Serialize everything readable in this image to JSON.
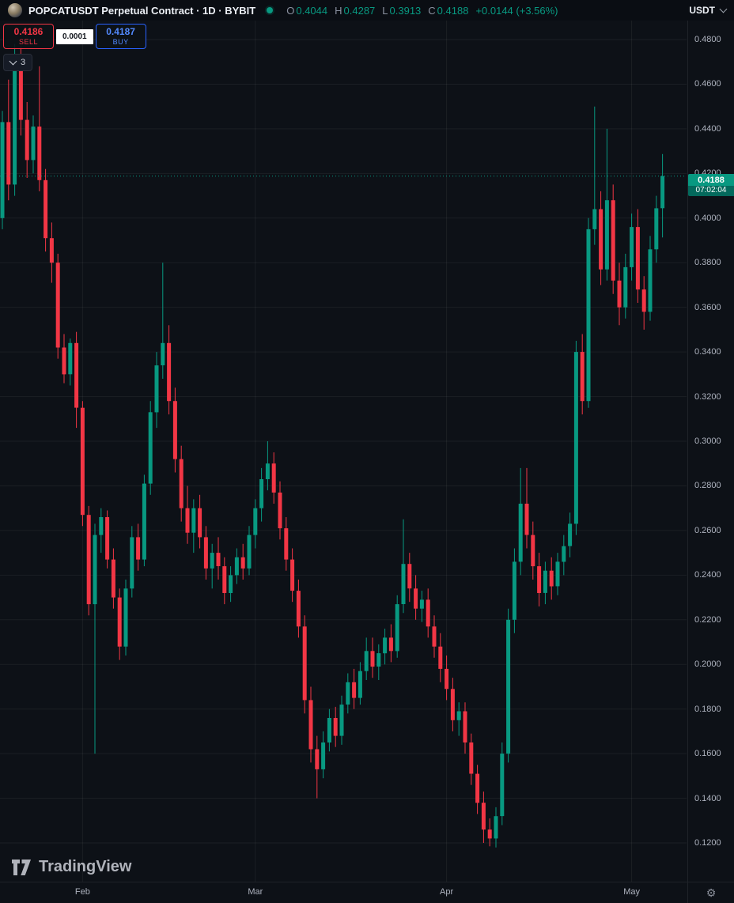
{
  "header": {
    "symbol_title": "POPCATUSDT Perpetual Contract · 1D · BYBIT",
    "ohlc": {
      "o_label": "O",
      "o": "0.4044",
      "h_label": "H",
      "h": "0.4287",
      "l_label": "L",
      "l": "0.3913",
      "c_label": "C",
      "c": "0.4188",
      "change": "+0.0144 (+3.56%)"
    },
    "currency": "USDT"
  },
  "trade_panel": {
    "sell_price": "0.4186",
    "sell_label": "SELL",
    "spread": "0.0001",
    "buy_price": "0.4187",
    "buy_label": "BUY",
    "collapsed_count": "3"
  },
  "price_label": {
    "price": "0.4188",
    "countdown": "07:02:04"
  },
  "watermark": "TradingView",
  "icons": {
    "gear": "⚙"
  },
  "colors": {
    "up": "#089981",
    "down": "#f23645",
    "buy_blue": "#2962ff",
    "background": "#0d1117",
    "grid": "rgba(255,255,255,0.06)",
    "price_label_bg": "#089981"
  },
  "chart_data": {
    "type": "candlestick",
    "title": "POPCATUSDT Perpetual Contract",
    "exchange": "BYBIT",
    "interval": "1D",
    "last_price": 0.4188,
    "last_change": "+0.0144 (+3.56%)",
    "price_axis": {
      "view_max": 0.4885,
      "view_min": 0.1023,
      "tick_step": 0.02,
      "decimals": 4,
      "ticks": [
        "0.4800",
        "0.4600",
        "0.4400",
        "0.4200",
        "0.4000",
        "0.3800",
        "0.3600",
        "0.3400",
        "0.3200",
        "0.3000",
        "0.2800",
        "0.2600",
        "0.2400",
        "0.2200",
        "0.2000",
        "0.1800",
        "0.1600",
        "0.1400",
        "0.1200"
      ]
    },
    "time_axis": {
      "labels": [
        "Feb",
        "Mar",
        "Apr",
        "May"
      ],
      "tick_indices": [
        13,
        41,
        72,
        102
      ]
    },
    "candles": [
      [
        0.4,
        0.448,
        0.395,
        0.443
      ],
      [
        0.443,
        0.462,
        0.408,
        0.415
      ],
      [
        0.415,
        0.478,
        0.41,
        0.47
      ],
      [
        0.47,
        0.477,
        0.437,
        0.444
      ],
      [
        0.444,
        0.452,
        0.418,
        0.426
      ],
      [
        0.426,
        0.446,
        0.42,
        0.441
      ],
      [
        0.441,
        0.468,
        0.412,
        0.417
      ],
      [
        0.417,
        0.422,
        0.385,
        0.391
      ],
      [
        0.391,
        0.398,
        0.371,
        0.38
      ],
      [
        0.38,
        0.384,
        0.337,
        0.342
      ],
      [
        0.342,
        0.348,
        0.326,
        0.33
      ],
      [
        0.33,
        0.346,
        0.325,
        0.344
      ],
      [
        0.344,
        0.349,
        0.306,
        0.315
      ],
      [
        0.315,
        0.318,
        0.262,
        0.267
      ],
      [
        0.267,
        0.271,
        0.222,
        0.227
      ],
      [
        0.227,
        0.263,
        0.16,
        0.258
      ],
      [
        0.258,
        0.27,
        0.25,
        0.266
      ],
      [
        0.266,
        0.269,
        0.243,
        0.247
      ],
      [
        0.247,
        0.252,
        0.225,
        0.23
      ],
      [
        0.23,
        0.234,
        0.202,
        0.208
      ],
      [
        0.208,
        0.238,
        0.204,
        0.234
      ],
      [
        0.234,
        0.262,
        0.23,
        0.257
      ],
      [
        0.257,
        0.263,
        0.242,
        0.247
      ],
      [
        0.247,
        0.285,
        0.244,
        0.281
      ],
      [
        0.281,
        0.318,
        0.276,
        0.313
      ],
      [
        0.313,
        0.34,
        0.306,
        0.334
      ],
      [
        0.334,
        0.38,
        0.328,
        0.344
      ],
      [
        0.344,
        0.352,
        0.312,
        0.318
      ],
      [
        0.318,
        0.324,
        0.286,
        0.292
      ],
      [
        0.292,
        0.298,
        0.264,
        0.27
      ],
      [
        0.27,
        0.28,
        0.254,
        0.259
      ],
      [
        0.259,
        0.274,
        0.25,
        0.27
      ],
      [
        0.27,
        0.276,
        0.252,
        0.257
      ],
      [
        0.257,
        0.262,
        0.238,
        0.243
      ],
      [
        0.243,
        0.254,
        0.234,
        0.25
      ],
      [
        0.25,
        0.257,
        0.238,
        0.244
      ],
      [
        0.244,
        0.248,
        0.227,
        0.232
      ],
      [
        0.232,
        0.244,
        0.228,
        0.24
      ],
      [
        0.24,
        0.252,
        0.236,
        0.248
      ],
      [
        0.248,
        0.254,
        0.238,
        0.243
      ],
      [
        0.243,
        0.262,
        0.24,
        0.258
      ],
      [
        0.258,
        0.274,
        0.252,
        0.27
      ],
      [
        0.27,
        0.288,
        0.264,
        0.283
      ],
      [
        0.283,
        0.3,
        0.278,
        0.29
      ],
      [
        0.29,
        0.295,
        0.272,
        0.277
      ],
      [
        0.277,
        0.282,
        0.256,
        0.261
      ],
      [
        0.261,
        0.266,
        0.242,
        0.247
      ],
      [
        0.247,
        0.252,
        0.228,
        0.233
      ],
      [
        0.233,
        0.238,
        0.212,
        0.217
      ],
      [
        0.217,
        0.222,
        0.178,
        0.184
      ],
      [
        0.184,
        0.19,
        0.156,
        0.162
      ],
      [
        0.162,
        0.168,
        0.14,
        0.153
      ],
      [
        0.153,
        0.17,
        0.149,
        0.165
      ],
      [
        0.165,
        0.18,
        0.161,
        0.176
      ],
      [
        0.176,
        0.181,
        0.163,
        0.168
      ],
      [
        0.168,
        0.186,
        0.164,
        0.182
      ],
      [
        0.182,
        0.196,
        0.178,
        0.192
      ],
      [
        0.192,
        0.198,
        0.18,
        0.185
      ],
      [
        0.185,
        0.201,
        0.182,
        0.197
      ],
      [
        0.197,
        0.212,
        0.193,
        0.206
      ],
      [
        0.206,
        0.212,
        0.194,
        0.199
      ],
      [
        0.199,
        0.209,
        0.193,
        0.205
      ],
      [
        0.205,
        0.216,
        0.2,
        0.212
      ],
      [
        0.212,
        0.218,
        0.201,
        0.206
      ],
      [
        0.206,
        0.231,
        0.203,
        0.227
      ],
      [
        0.227,
        0.265,
        0.223,
        0.245
      ],
      [
        0.245,
        0.25,
        0.228,
        0.234
      ],
      [
        0.234,
        0.24,
        0.22,
        0.225
      ],
      [
        0.225,
        0.233,
        0.219,
        0.229
      ],
      [
        0.229,
        0.234,
        0.212,
        0.217
      ],
      [
        0.217,
        0.222,
        0.203,
        0.208
      ],
      [
        0.208,
        0.214,
        0.192,
        0.198
      ],
      [
        0.198,
        0.204,
        0.184,
        0.189
      ],
      [
        0.189,
        0.194,
        0.17,
        0.175
      ],
      [
        0.175,
        0.183,
        0.168,
        0.179
      ],
      [
        0.179,
        0.183,
        0.16,
        0.165
      ],
      [
        0.165,
        0.169,
        0.146,
        0.151
      ],
      [
        0.151,
        0.155,
        0.133,
        0.138
      ],
      [
        0.138,
        0.143,
        0.12,
        0.126
      ],
      [
        0.126,
        0.131,
        0.1185,
        0.122
      ],
      [
        0.122,
        0.136,
        0.118,
        0.132
      ],
      [
        0.132,
        0.165,
        0.128,
        0.16
      ],
      [
        0.16,
        0.225,
        0.156,
        0.22
      ],
      [
        0.22,
        0.252,
        0.214,
        0.246
      ],
      [
        0.246,
        0.288,
        0.24,
        0.272
      ],
      [
        0.272,
        0.288,
        0.252,
        0.258
      ],
      [
        0.258,
        0.264,
        0.238,
        0.244
      ],
      [
        0.244,
        0.25,
        0.226,
        0.232
      ],
      [
        0.232,
        0.246,
        0.227,
        0.242
      ],
      [
        0.242,
        0.248,
        0.229,
        0.235
      ],
      [
        0.235,
        0.25,
        0.231,
        0.246
      ],
      [
        0.246,
        0.258,
        0.24,
        0.253
      ],
      [
        0.253,
        0.268,
        0.248,
        0.263
      ],
      [
        0.263,
        0.345,
        0.258,
        0.34
      ],
      [
        0.34,
        0.348,
        0.312,
        0.318
      ],
      [
        0.318,
        0.4,
        0.315,
        0.395
      ],
      [
        0.395,
        0.45,
        0.388,
        0.404
      ],
      [
        0.404,
        0.412,
        0.37,
        0.377
      ],
      [
        0.377,
        0.44,
        0.372,
        0.408
      ],
      [
        0.408,
        0.415,
        0.366,
        0.372
      ],
      [
        0.372,
        0.38,
        0.352,
        0.36
      ],
      [
        0.36,
        0.384,
        0.355,
        0.378
      ],
      [
        0.378,
        0.402,
        0.372,
        0.396
      ],
      [
        0.396,
        0.404,
        0.362,
        0.368
      ],
      [
        0.368,
        0.374,
        0.35,
        0.358
      ],
      [
        0.358,
        0.392,
        0.354,
        0.386
      ],
      [
        0.386,
        0.41,
        0.38,
        0.4044
      ],
      [
        0.4044,
        0.4287,
        0.3913,
        0.4188
      ]
    ]
  }
}
